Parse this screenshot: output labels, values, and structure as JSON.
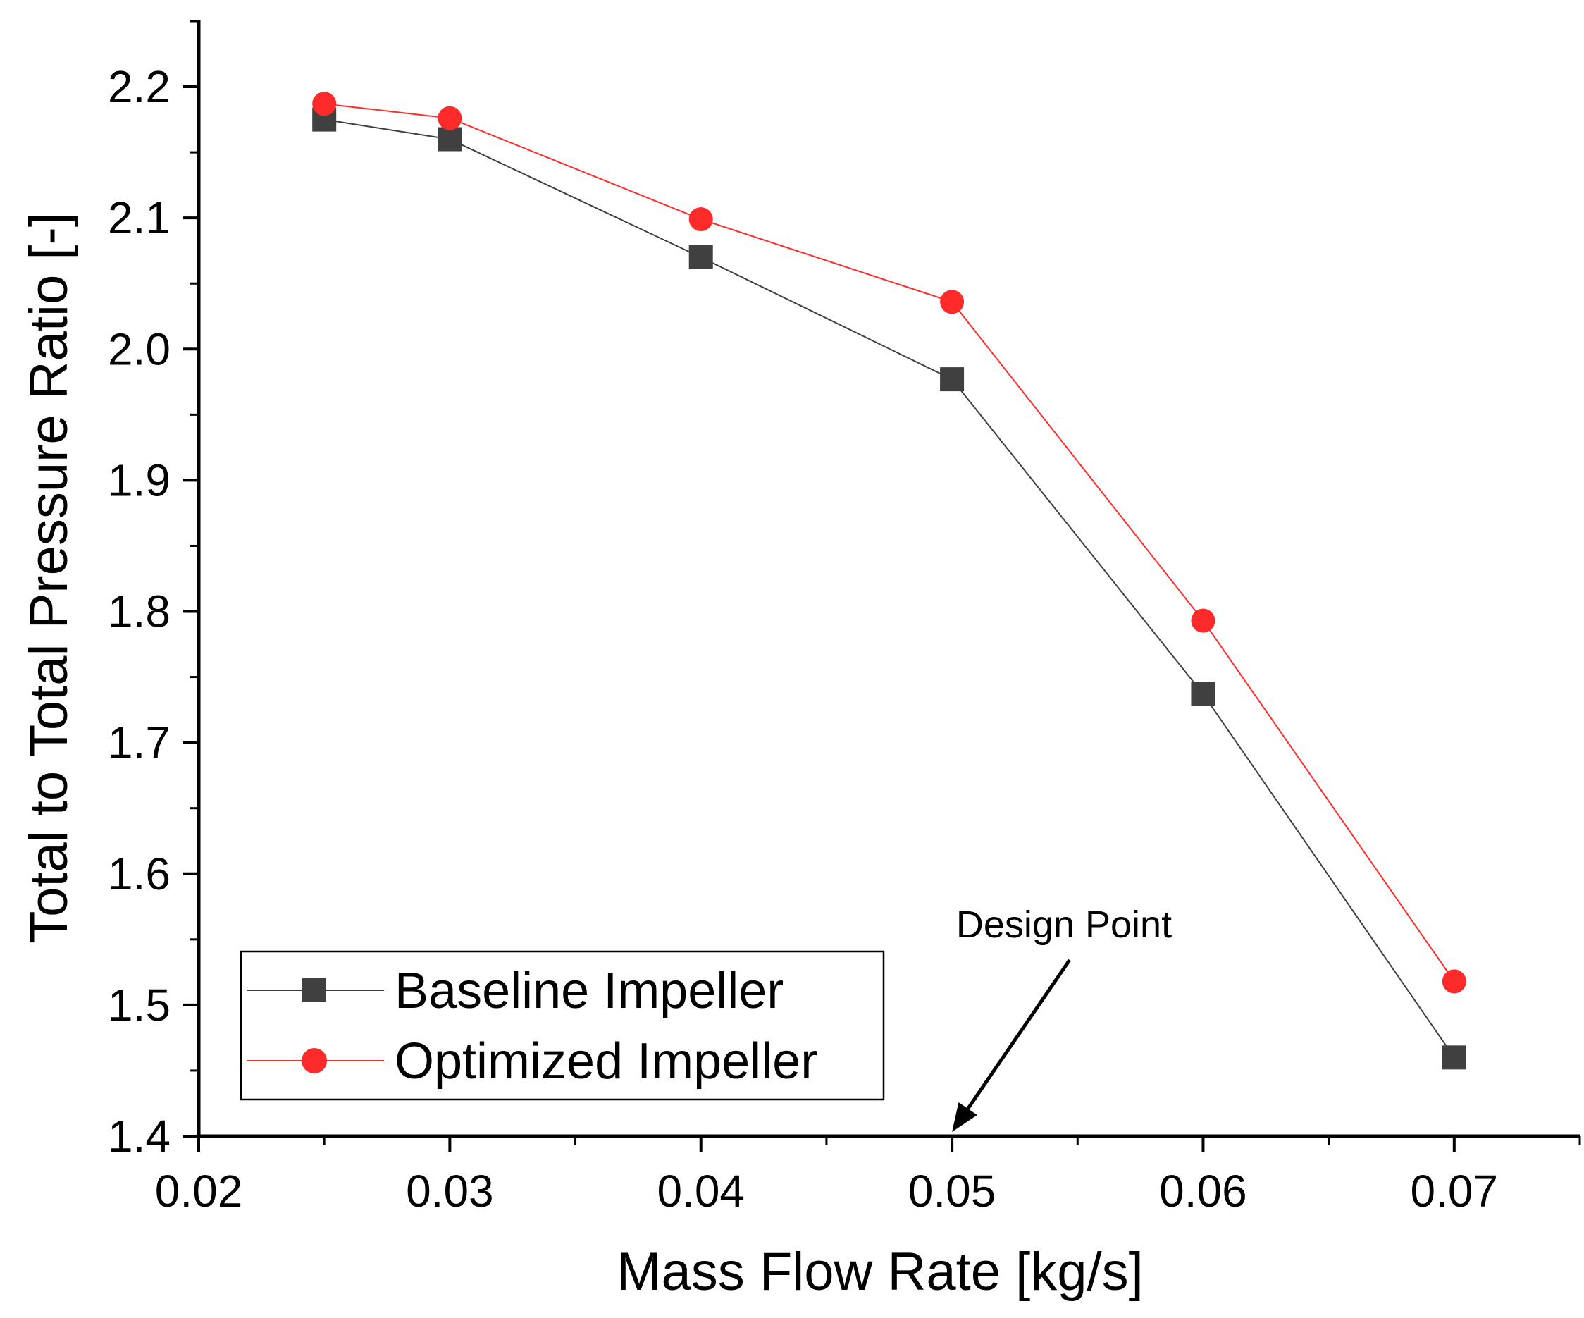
{
  "chart_data": {
    "type": "line",
    "title": "",
    "xlabel": "Mass Flow Rate [kg/s]",
    "ylabel": "Total to Total Pressure Ratio [-]",
    "xlim": [
      0.02,
      0.075
    ],
    "ylim": [
      1.4,
      2.25
    ],
    "x_ticks": [
      0.02,
      0.03,
      0.04,
      0.05,
      0.06,
      0.07
    ],
    "x_tick_labels": [
      "0.02",
      "0.03",
      "0.04",
      "0.05",
      "0.06",
      "0.07"
    ],
    "y_ticks": [
      1.4,
      1.5,
      1.6,
      1.7,
      1.8,
      1.9,
      2.0,
      2.1,
      2.2
    ],
    "y_tick_labels": [
      "1.4",
      "1.5",
      "1.6",
      "1.7",
      "1.8",
      "1.9",
      "2.0",
      "2.1",
      "2.2"
    ],
    "grid": false,
    "legend_position": "bottom-left",
    "series": [
      {
        "name": "Baseline Impeller",
        "marker": "square",
        "color": "#404040",
        "x": [
          0.025,
          0.03,
          0.04,
          0.05,
          0.06,
          0.07
        ],
        "y": [
          2.175,
          2.16,
          2.07,
          1.977,
          1.737,
          1.46
        ]
      },
      {
        "name": "Optimized Impeller",
        "marker": "circle",
        "color": "#ff2b2b",
        "x": [
          0.025,
          0.03,
          0.04,
          0.05,
          0.06,
          0.07
        ],
        "y": [
          2.187,
          2.176,
          2.099,
          2.036,
          1.793,
          1.518
        ]
      }
    ],
    "annotations": [
      {
        "text": "Design Point",
        "points_to_x": 0.05,
        "points_to_y": 1.4
      }
    ]
  }
}
